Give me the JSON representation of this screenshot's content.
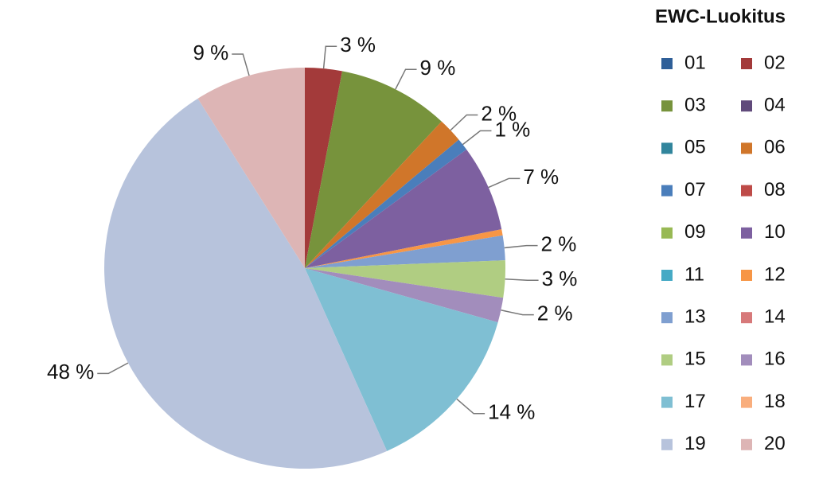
{
  "chart_data": {
    "type": "pie",
    "legend_title": "EWC-Luokitus",
    "legend_position": "right",
    "categories": [
      "01",
      "02",
      "03",
      "04",
      "05",
      "06",
      "07",
      "08",
      "09",
      "10",
      "11",
      "12",
      "13",
      "14",
      "15",
      "16",
      "17",
      "18",
      "19",
      "20"
    ],
    "values": [
      0,
      3,
      9,
      0,
      0,
      2,
      1,
      0,
      0,
      7,
      0,
      0.5,
      2,
      0,
      3,
      2,
      14,
      0,
      48,
      9
    ],
    "value_labels": [
      null,
      "3 %",
      "9 %",
      null,
      null,
      "2 %",
      "1 %",
      null,
      null,
      "7 %",
      null,
      null,
      "2 %",
      null,
      "3 %",
      "2 %",
      "14 %",
      null,
      "48 %",
      "9 %"
    ],
    "colors": [
      "#2f5f98",
      "#a33a3a",
      "#77933c",
      "#604a7b",
      "#31859c",
      "#d0762a",
      "#4a7ebb",
      "#be4b48",
      "#98b954",
      "#7d60a0",
      "#46aac5",
      "#f79646",
      "#7f9fd0",
      "#d7797a",
      "#b0cd82",
      "#a28dbc",
      "#7fbfd3",
      "#f9ae7d",
      "#b7c3dc",
      "#ddb5b5"
    ]
  }
}
